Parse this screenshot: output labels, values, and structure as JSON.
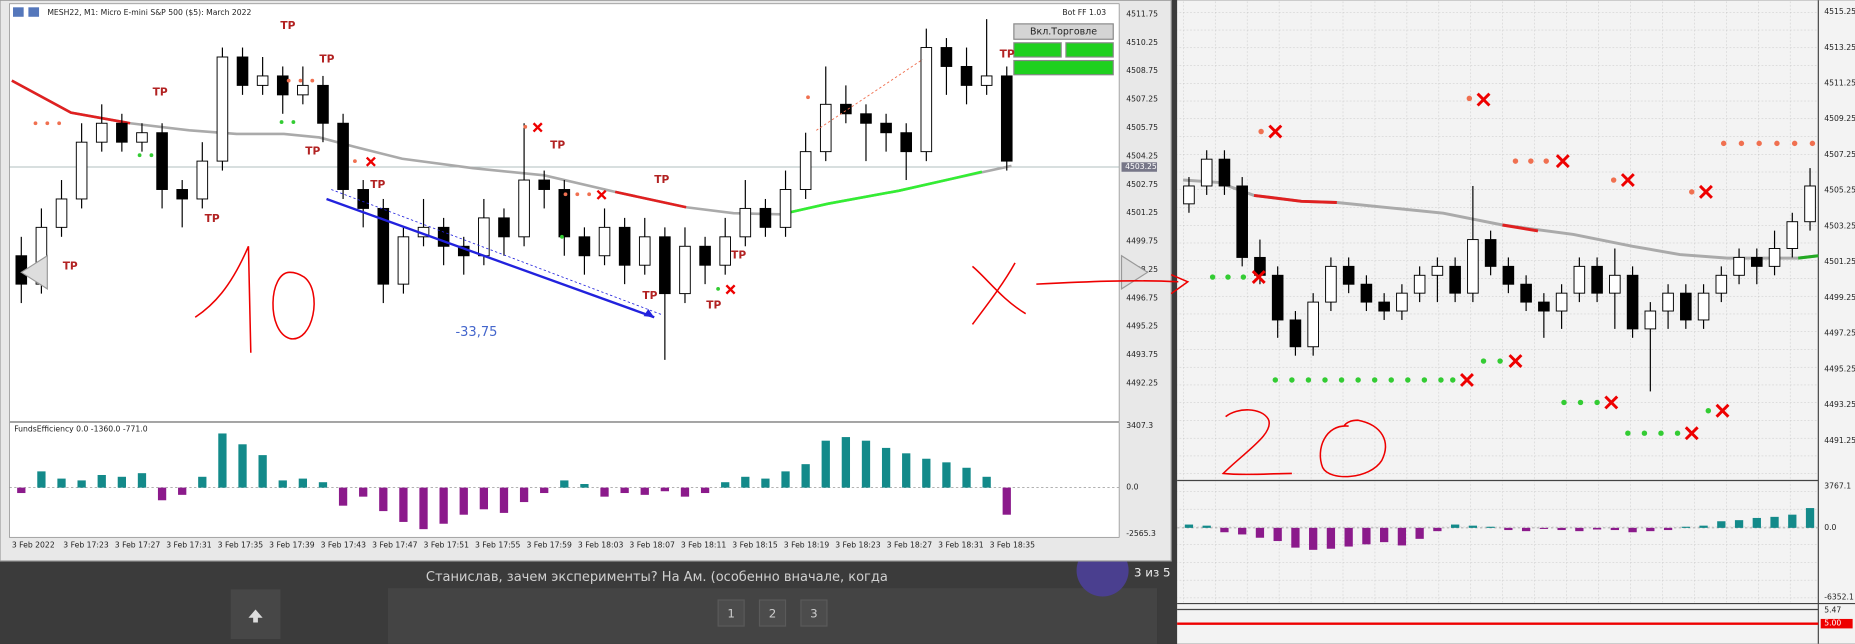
{
  "left_window": {
    "title": "MESH22, M1: Micro E-mini S&P 500 ($5): March 2022",
    "bot_label": "Bot FF 1.03",
    "button": "Вкл.Торговле",
    "price_axis": [
      "4511.75",
      "4510.25",
      "4508.75",
      "4507.25",
      "4505.75",
      "4504.25",
      "4502.75",
      "4501.25",
      "4499.75",
      "4498.25",
      "4496.75",
      "4495.25",
      "4493.75",
      "4492.25"
    ],
    "current_price": "4503.25",
    "indicator_label": "FundsEfficiency 0.0 -1360.0 -771.0",
    "indicator_axis": [
      "3407.3",
      "0.0",
      "-2565.3"
    ],
    "time_axis": [
      "3 Feb 2022",
      "3 Feb 17:23",
      "3 Feb 17:27",
      "3 Feb 17:31",
      "3 Feb 17:35",
      "3 Feb 17:39",
      "3 Feb 17:43",
      "3 Feb 17:47",
      "3 Feb 17:51",
      "3 Feb 17:55",
      "3 Feb 17:59",
      "3 Feb 18:03",
      "3 Feb 18:07",
      "3 Feb 18:11",
      "3 Feb 18:15",
      "3 Feb 18:19",
      "3 Feb 18:23",
      "3 Feb 18:27",
      "3 Feb 18:31",
      "3 Feb 18:35"
    ],
    "annotation": "-33,75",
    "tp_markers": [
      "TP",
      "TP",
      "TP",
      "TP",
      "TP",
      "TP",
      "TP",
      "TP",
      "TP",
      "TP",
      "TP",
      "TP",
      "TP"
    ],
    "candles": [
      [
        4499.0,
        4500.0,
        4496.5,
        4497.5
      ],
      [
        4497.5,
        4501.5,
        4497.0,
        4500.5
      ],
      [
        4500.5,
        4503.0,
        4500.0,
        4502.0
      ],
      [
        4502.0,
        4506.0,
        4501.5,
        4505.0
      ],
      [
        4505.0,
        4507.0,
        4504.5,
        4506.0
      ],
      [
        4506.0,
        4506.5,
        4504.5,
        4505.0
      ],
      [
        4505.0,
        4506.0,
        4504.5,
        4505.5
      ],
      [
        4505.5,
        4506.0,
        4501.5,
        4502.5
      ],
      [
        4502.5,
        4503.0,
        4500.5,
        4502.0
      ],
      [
        4502.0,
        4505.0,
        4501.5,
        4504.0
      ],
      [
        4504.0,
        4510.0,
        4503.5,
        4509.5
      ],
      [
        4509.5,
        4510.0,
        4507.5,
        4508.0
      ],
      [
        4508.0,
        4509.5,
        4507.5,
        4508.5
      ],
      [
        4508.5,
        4509.0,
        4506.5,
        4507.5
      ],
      [
        4507.5,
        4509.0,
        4507.0,
        4508.0
      ],
      [
        4508.0,
        4508.5,
        4505.0,
        4506.0
      ],
      [
        4506.0,
        4506.5,
        4502.0,
        4502.5
      ],
      [
        4502.5,
        4503.0,
        4500.5,
        4501.5
      ],
      [
        4501.5,
        4502.0,
        4496.5,
        4497.5
      ],
      [
        4497.5,
        4500.5,
        4497.0,
        4500.0
      ],
      [
        4500.0,
        4502.0,
        4499.5,
        4500.5
      ],
      [
        4500.5,
        4501.0,
        4498.5,
        4499.5
      ],
      [
        4499.5,
        4500.0,
        4498.0,
        4499.0
      ],
      [
        4499.0,
        4502.0,
        4498.5,
        4501.0
      ],
      [
        4501.0,
        4501.5,
        4499.0,
        4500.0
      ],
      [
        4500.0,
        4506.0,
        4499.5,
        4503.0
      ],
      [
        4503.0,
        4503.5,
        4501.5,
        4502.5
      ],
      [
        4502.5,
        4503.0,
        4499.0,
        4500.0
      ],
      [
        4500.0,
        4500.5,
        4498.0,
        4499.0
      ],
      [
        4499.0,
        4501.5,
        4498.5,
        4500.5
      ],
      [
        4500.5,
        4501.0,
        4497.5,
        4498.5
      ],
      [
        4498.5,
        4501.0,
        4498.0,
        4500.0
      ],
      [
        4500.0,
        4500.5,
        4493.5,
        4497.0
      ],
      [
        4497.0,
        4500.5,
        4496.5,
        4499.5
      ],
      [
        4499.5,
        4500.0,
        4497.5,
        4498.5
      ],
      [
        4498.5,
        4501.0,
        4498.0,
        4500.0
      ],
      [
        4500.0,
        4503.0,
        4499.5,
        4501.5
      ],
      [
        4501.5,
        4502.0,
        4500.0,
        4500.5
      ],
      [
        4500.5,
        4503.5,
        4500.0,
        4502.5
      ],
      [
        4502.5,
        4505.5,
        4502.0,
        4504.5
      ],
      [
        4504.5,
        4509.0,
        4504.0,
        4507.0
      ],
      [
        4507.0,
        4508.0,
        4506.0,
        4506.5
      ],
      [
        4506.5,
        4507.0,
        4504.0,
        4506.0
      ],
      [
        4506.0,
        4506.5,
        4504.5,
        4505.5
      ],
      [
        4505.5,
        4506.0,
        4503.0,
        4504.5
      ],
      [
        4504.5,
        4511.0,
        4504.0,
        4510.0
      ],
      [
        4510.0,
        4510.5,
        4507.5,
        4509.0
      ],
      [
        4509.0,
        4510.0,
        4507.0,
        4508.0
      ],
      [
        4508.0,
        4511.5,
        4507.5,
        4508.5
      ],
      [
        4508.5,
        4509.0,
        4503.5,
        4504.0
      ]
    ],
    "histogram": [
      -300,
      900,
      500,
      400,
      700,
      600,
      800,
      -700,
      -400,
      600,
      3000,
      2400,
      1800,
      400,
      500,
      300,
      -1000,
      -500,
      -1300,
      -1900,
      -2300,
      -2000,
      -1500,
      -1200,
      -1400,
      -800,
      -300,
      400,
      200,
      -500,
      -300,
      -400,
      -200,
      -500,
      -300,
      300,
      600,
      500,
      900,
      1300,
      2600,
      2800,
      2600,
      2200,
      1900,
      1600,
      1400,
      1100,
      600,
      -1500
    ]
  },
  "right_window": {
    "price_axis": [
      "4515.25",
      "4513.25",
      "4511.25",
      "4509.25",
      "4507.25",
      "4505.25",
      "4503.25",
      "4501.25",
      "4499.25",
      "4497.25",
      "4495.25",
      "4493.25",
      "4491.25"
    ],
    "indicator_axis": [
      "3767.1",
      "0.0",
      "-6352.1"
    ],
    "bottom_axis": [
      "5.47",
      "5.00"
    ],
    "candles": [
      [
        4504.5,
        4506,
        4504,
        4505.5
      ],
      [
        4505.5,
        4507.5,
        4505,
        4507
      ],
      [
        4507,
        4507.5,
        4505,
        4505.5
      ],
      [
        4505.5,
        4506,
        4501,
        4501.5
      ],
      [
        4501.5,
        4502.5,
        4500,
        4500.5
      ],
      [
        4500.5,
        4501,
        4497,
        4498
      ],
      [
        4498,
        4498.5,
        4496,
        4496.5
      ],
      [
        4496.5,
        4499.5,
        4496,
        4499
      ],
      [
        4499,
        4501.5,
        4498.5,
        4501
      ],
      [
        4501,
        4501.5,
        4499.5,
        4500
      ],
      [
        4500,
        4500.5,
        4498.5,
        4499
      ],
      [
        4499,
        4499.5,
        4498,
        4498.5
      ],
      [
        4498.5,
        4500,
        4498,
        4499.5
      ],
      [
        4499.5,
        4501,
        4499,
        4500.5
      ],
      [
        4500.5,
        4501.5,
        4499,
        4501
      ],
      [
        4501,
        4501.5,
        4499,
        4499.5
      ],
      [
        4499.5,
        4505.5,
        4499,
        4502.5
      ],
      [
        4502.5,
        4503,
        4500.5,
        4501
      ],
      [
        4501,
        4501.5,
        4499.5,
        4500
      ],
      [
        4500,
        4500.5,
        4498.5,
        4499
      ],
      [
        4499,
        4499.5,
        4497,
        4498.5
      ],
      [
        4498.5,
        4500,
        4497.5,
        4499.5
      ],
      [
        4499.5,
        4501.5,
        4499,
        4501
      ],
      [
        4501,
        4501.5,
        4499,
        4499.5
      ],
      [
        4499.5,
        4502,
        4497.5,
        4500.5
      ],
      [
        4500.5,
        4501,
        4497,
        4497.5
      ],
      [
        4497.5,
        4499,
        4494,
        4498.5
      ],
      [
        4498.5,
        4500,
        4497.5,
        4499.5
      ],
      [
        4499.5,
        4500,
        4497.5,
        4498
      ],
      [
        4498,
        4500,
        4497.5,
        4499.5
      ],
      [
        4499.5,
        4501,
        4499,
        4500.5
      ],
      [
        4500.5,
        4502,
        4500,
        4501.5
      ],
      [
        4501.5,
        4502,
        4500,
        4501
      ],
      [
        4501,
        4503,
        4500.5,
        4502
      ],
      [
        4502,
        4504,
        4501.5,
        4503.5
      ],
      [
        4503.5,
        4506.5,
        4503,
        4505.5
      ]
    ],
    "histogram": [
      300,
      200,
      -400,
      -600,
      -900,
      -1200,
      -1800,
      -2000,
      -1900,
      -1700,
      -1500,
      -1300,
      -1600,
      -1000,
      -300,
      300,
      200,
      100,
      -200,
      -300,
      -100,
      -200,
      -300,
      -150,
      -200,
      -400,
      -300,
      -200,
      100,
      200,
      600,
      700,
      900,
      1000,
      1200,
      1800
    ]
  },
  "page": {
    "comment": "Станислав, зачем эксперименты? На Ам. (особенно вначале, когда",
    "pagination": [
      "1",
      "2",
      "3"
    ],
    "counter": "3 из 5"
  }
}
